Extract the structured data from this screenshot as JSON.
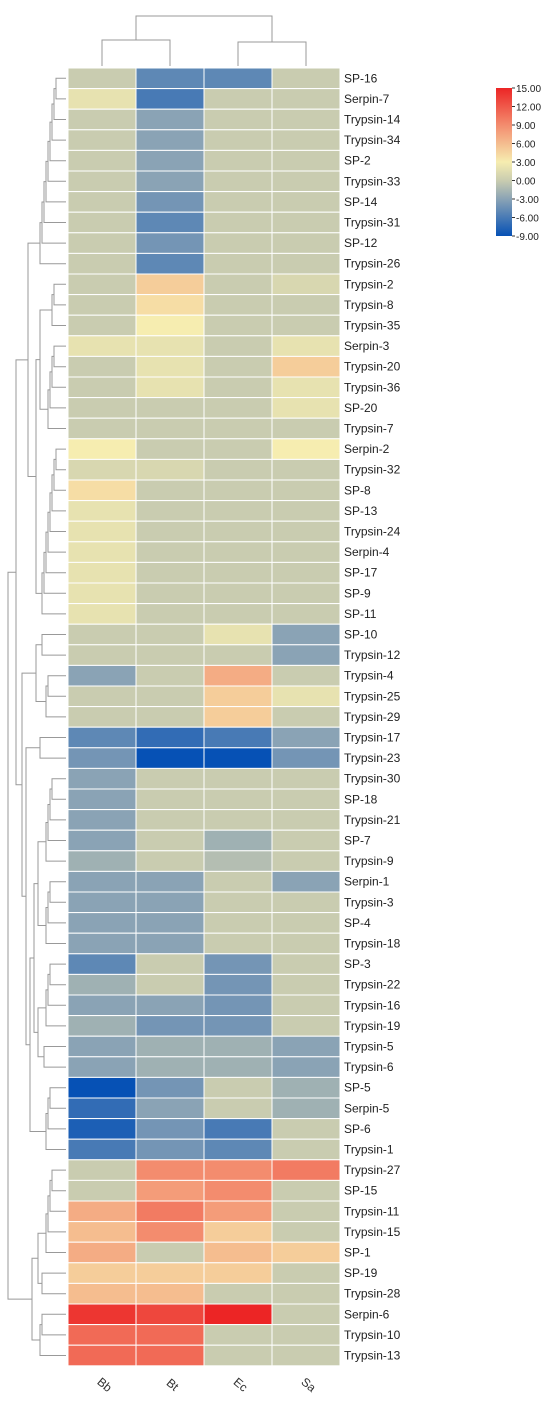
{
  "chart_data": {
    "type": "heatmap",
    "columns": [
      "Bb",
      "Bt",
      "Ec",
      "Sa"
    ],
    "rows": [
      "SP-16",
      "Serpin-7",
      "Trypsin-14",
      "Trypsin-34",
      "SP-2",
      "Trypsin-33",
      "SP-14",
      "Trypsin-31",
      "SP-12",
      "Trypsin-26",
      "Trypsin-2",
      "Trypsin-8",
      "Trypsin-35",
      "Serpin-3",
      "Trypsin-20",
      "Trypsin-36",
      "SP-20",
      "Trypsin-7",
      "Serpin-2",
      "Trypsin-32",
      "SP-8",
      "SP-13",
      "Trypsin-24",
      "Serpin-4",
      "SP-17",
      "SP-9",
      "SP-11",
      "SP-10",
      "Trypsin-12",
      "Trypsin-4",
      "Trypsin-25",
      "Trypsin-29",
      "Trypsin-17",
      "Trypsin-23",
      "Trypsin-30",
      "SP-18",
      "Trypsin-21",
      "SP-7",
      "Trypsin-9",
      "Serpin-1",
      "Trypsin-3",
      "SP-4",
      "Trypsin-18",
      "SP-3",
      "Trypsin-22",
      "Trypsin-16",
      "Trypsin-19",
      "Trypsin-5",
      "Trypsin-6",
      "SP-5",
      "Serpin-5",
      "SP-6",
      "Trypsin-1",
      "Trypsin-27",
      "SP-15",
      "Trypsin-11",
      "Trypsin-15",
      "SP-1",
      "SP-19",
      "Trypsin-28",
      "Serpin-6",
      "Trypsin-10",
      "Trypsin-13"
    ],
    "values": [
      [
        0,
        -5,
        -5,
        0
      ],
      [
        2,
        -6,
        0,
        0
      ],
      [
        0,
        -3,
        0,
        0
      ],
      [
        0,
        -3,
        0,
        0
      ],
      [
        0,
        -3,
        0,
        0
      ],
      [
        0,
        -3,
        0,
        0
      ],
      [
        0,
        -4,
        0,
        0
      ],
      [
        0,
        -5,
        0,
        0
      ],
      [
        0,
        -4,
        0,
        0
      ],
      [
        0,
        -5,
        0,
        0
      ],
      [
        0,
        5,
        0,
        1
      ],
      [
        0,
        4,
        0,
        0
      ],
      [
        0,
        3,
        0,
        0
      ],
      [
        2,
        2,
        0,
        2
      ],
      [
        0,
        2,
        0,
        5
      ],
      [
        0,
        2,
        0,
        2
      ],
      [
        0,
        0,
        0,
        2
      ],
      [
        0,
        0,
        0,
        0
      ],
      [
        3,
        0,
        0,
        3
      ],
      [
        1,
        1,
        0,
        0
      ],
      [
        4,
        0,
        0,
        0
      ],
      [
        2,
        0,
        0,
        0
      ],
      [
        2,
        0,
        0,
        0
      ],
      [
        2,
        0,
        0,
        0
      ],
      [
        2,
        0,
        0,
        0
      ],
      [
        2,
        0,
        0,
        0
      ],
      [
        2,
        0,
        0,
        0
      ],
      [
        0,
        0,
        2,
        -3
      ],
      [
        0,
        0,
        0,
        -3
      ],
      [
        -3,
        0,
        7,
        0
      ],
      [
        0,
        0,
        5,
        2
      ],
      [
        0,
        0,
        5,
        0
      ],
      [
        -5,
        -7,
        -6,
        -3
      ],
      [
        -4,
        -9,
        -9,
        -4
      ],
      [
        -3,
        0,
        0,
        0
      ],
      [
        -3,
        0,
        0,
        0
      ],
      [
        -3,
        0,
        0,
        0
      ],
      [
        -3,
        0,
        -2,
        0
      ],
      [
        -2,
        0,
        -1,
        0
      ],
      [
        -3,
        -3,
        0,
        -3
      ],
      [
        -3,
        -3,
        0,
        0
      ],
      [
        -3,
        -3,
        0,
        0
      ],
      [
        -3,
        -3,
        0,
        0
      ],
      [
        -5,
        0,
        -4,
        0
      ],
      [
        -2,
        0,
        -4,
        0
      ],
      [
        -3,
        -3,
        -4,
        0
      ],
      [
        -2,
        -4,
        -4,
        0
      ],
      [
        -3,
        -2,
        -2,
        -3
      ],
      [
        -3,
        -2,
        -2,
        -3
      ],
      [
        -9,
        -4,
        0,
        -2
      ],
      [
        -7,
        -3,
        0,
        -2
      ],
      [
        -8,
        -4,
        -6,
        0
      ],
      [
        -6,
        -4,
        -5,
        0
      ],
      [
        0,
        9,
        9,
        10
      ],
      [
        0,
        8,
        9,
        0
      ],
      [
        7,
        10,
        8,
        0
      ],
      [
        6,
        9,
        5,
        0
      ],
      [
        7,
        0,
        6,
        5
      ],
      [
        5,
        5,
        5,
        0
      ],
      [
        6,
        6,
        0,
        0
      ],
      [
        14,
        13,
        15,
        0
      ],
      [
        11,
        11,
        0,
        0
      ],
      [
        11,
        11,
        0,
        0
      ]
    ],
    "legend": {
      "position": "top-right",
      "min": -9,
      "max": 15,
      "ticks": [
        "15.00",
        "12.00",
        "9.00",
        "6.00",
        "3.00",
        "0.00",
        "-3.00",
        "-6.00",
        "-9.00"
      ]
    },
    "colors": {
      "low": "#0651b5",
      "mid_low": "#8aa3b5",
      "mid": "#c9ccb0",
      "mid_high": "#f6edb0",
      "high": "#ec2525"
    },
    "dendrograms": {
      "top": true,
      "left": true
    }
  }
}
